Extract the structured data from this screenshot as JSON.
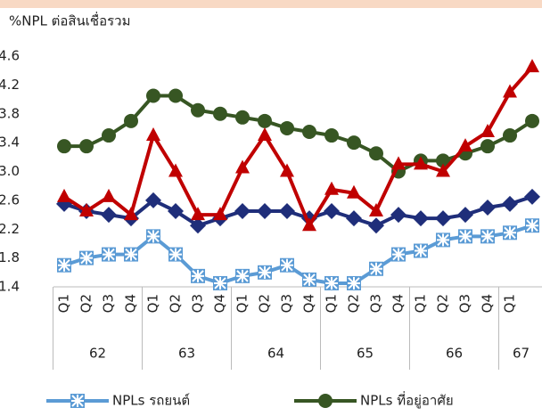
{
  "chart_data": {
    "type": "line",
    "title": "%NPL ต่อสินเชื่อรวม",
    "categories": [
      "Q1",
      "Q2",
      "Q3",
      "Q4",
      "Q1",
      "Q2",
      "Q3",
      "Q4",
      "Q1",
      "Q2",
      "Q3",
      "Q4",
      "Q1",
      "Q2",
      "Q3",
      "Q4",
      "Q1",
      "Q2",
      "Q3",
      "Q4",
      "Q1",
      null
    ],
    "years": [
      "62",
      "63",
      "64",
      "65",
      "66",
      "67"
    ],
    "ylim": [
      1.4,
      4.6
    ],
    "yticks": [
      {
        "value": 4.6,
        "label": "4.6"
      },
      {
        "value": 4.2,
        "label": "4.2"
      },
      {
        "value": 3.8,
        "label": "3.8"
      },
      {
        "value": 3.4,
        "label": "3.4"
      },
      {
        "value": 3.0,
        "label": "3.0"
      },
      {
        "value": 2.6,
        "label": "2.6"
      },
      {
        "value": 2.2,
        "label": "2.2"
      },
      {
        "value": 1.8,
        "label": "1.8"
      },
      {
        "value": 1.4,
        "label": "1.4"
      }
    ],
    "grid": false,
    "series": [
      {
        "name": "NPLs รถยนต์",
        "color": "#5b9bd5",
        "marker": "star",
        "values": [
          1.7,
          1.8,
          1.85,
          1.85,
          2.1,
          1.85,
          1.55,
          1.45,
          1.55,
          1.6,
          1.7,
          1.5,
          1.45,
          1.45,
          1.65,
          1.85,
          1.9,
          2.05,
          2.1,
          2.1,
          2.15,
          2.25
        ]
      },
      {
        "name": "NPLs ที่อยู่อาศัย",
        "color": "#375623",
        "marker": "circle",
        "values": [
          3.35,
          3.35,
          3.5,
          3.7,
          4.05,
          4.05,
          3.85,
          3.8,
          3.75,
          3.7,
          3.6,
          3.55,
          3.5,
          3.4,
          3.25,
          3.0,
          3.15,
          3.15,
          3.25,
          3.35,
          3.5,
          3.7
        ]
      },
      {
        "color": "#1f2e7a",
        "marker": "diamond",
        "values": [
          2.55,
          2.45,
          2.4,
          2.35,
          2.6,
          2.45,
          2.25,
          2.35,
          2.45,
          2.45,
          2.45,
          2.35,
          2.45,
          2.35,
          2.25,
          2.4,
          2.35,
          2.35,
          2.4,
          2.5,
          2.55,
          2.65
        ]
      },
      {
        "color": "#c00000",
        "marker": "triangle",
        "values": [
          2.65,
          2.45,
          2.65,
          2.4,
          3.5,
          3.0,
          2.4,
          2.4,
          3.05,
          3.5,
          3.0,
          2.25,
          2.75,
          2.7,
          2.45,
          3.1,
          3.1,
          3.0,
          3.35,
          3.55,
          4.1,
          4.45
        ]
      }
    ]
  }
}
